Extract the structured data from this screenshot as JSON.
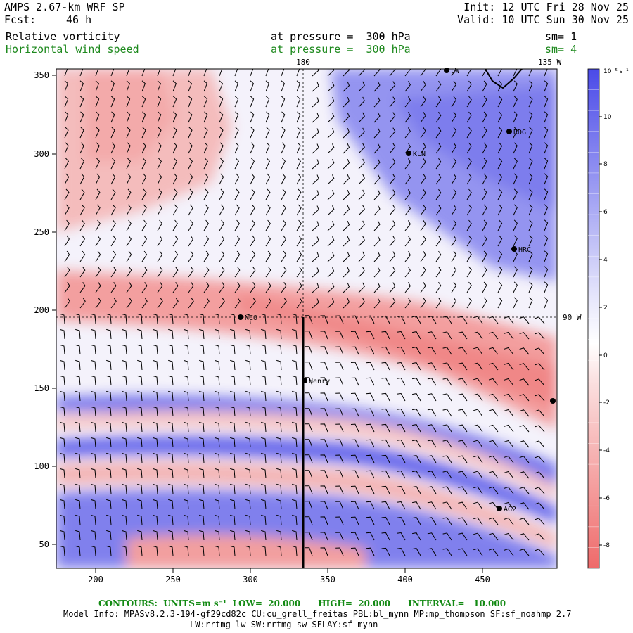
{
  "header": {
    "model": "AMPS 2.67-km WRF SP",
    "fcst_label": "Fcst:",
    "fcst_value": "46 h",
    "init": "Init: 12 UTC Fri 28 Nov 25",
    "valid": "Valid: 10 UTC Sun 30 Nov 25",
    "field1": "Relative vorticity",
    "field2": "Horizontal wind speed",
    "pressure1": "at pressure =  300 hPa",
    "pressure2": "at pressure =  300 hPa",
    "sm1": "sm= 1",
    "sm2": "sm= 4"
  },
  "colors": {
    "positive": "#5a5aee",
    "negative": "#ef6f6f",
    "zero": "#ffffff",
    "header_green": "#1f8a1f"
  },
  "map": {
    "x_ticks": [
      "200",
      "250",
      "300",
      "350",
      "400",
      "450"
    ],
    "y_ticks": [
      "350",
      "300",
      "250",
      "200",
      "150",
      "100",
      "50"
    ],
    "lon_labels": {
      "top_180": "180",
      "top_135w": "135 W",
      "right_90w": "90 W"
    },
    "stations": [
      {
        "id": "LWF",
        "label": "LW"
      },
      {
        "id": "RDG",
        "label": "RDG"
      },
      {
        "id": "KLN",
        "label": "KLN"
      },
      {
        "id": "HRC",
        "label": "HRC"
      },
      {
        "id": "NCO",
        "label": "NCO"
      },
      {
        "id": "Henry",
        "label": "Henry"
      },
      {
        "id": "EDGE",
        "label": ""
      },
      {
        "id": "AG2",
        "label": "AG2"
      }
    ]
  },
  "colorbar": {
    "unit": "10⁻⁵ s⁻¹",
    "ticks": [
      "10",
      "8",
      "6",
      "4",
      "2",
      "0",
      "-2",
      "-4",
      "-6",
      "-8"
    ]
  },
  "footer": {
    "contours": "CONTOURS:  UNITS=m s⁻¹  LOW=  20.000      HIGH=  20.000      INTERVAL=   10.000",
    "model_info": "Model Info: MPASv8.2.3-194-gf29cd82c CU:cu_grell_freitas PBL:bl_mynn MP:mp_thompson SF:sf_noahmp 2.7",
    "model_info2": "LW:rrtmg_lw SW:rrtmg_sw SFLAY:sf_mynn"
  }
}
